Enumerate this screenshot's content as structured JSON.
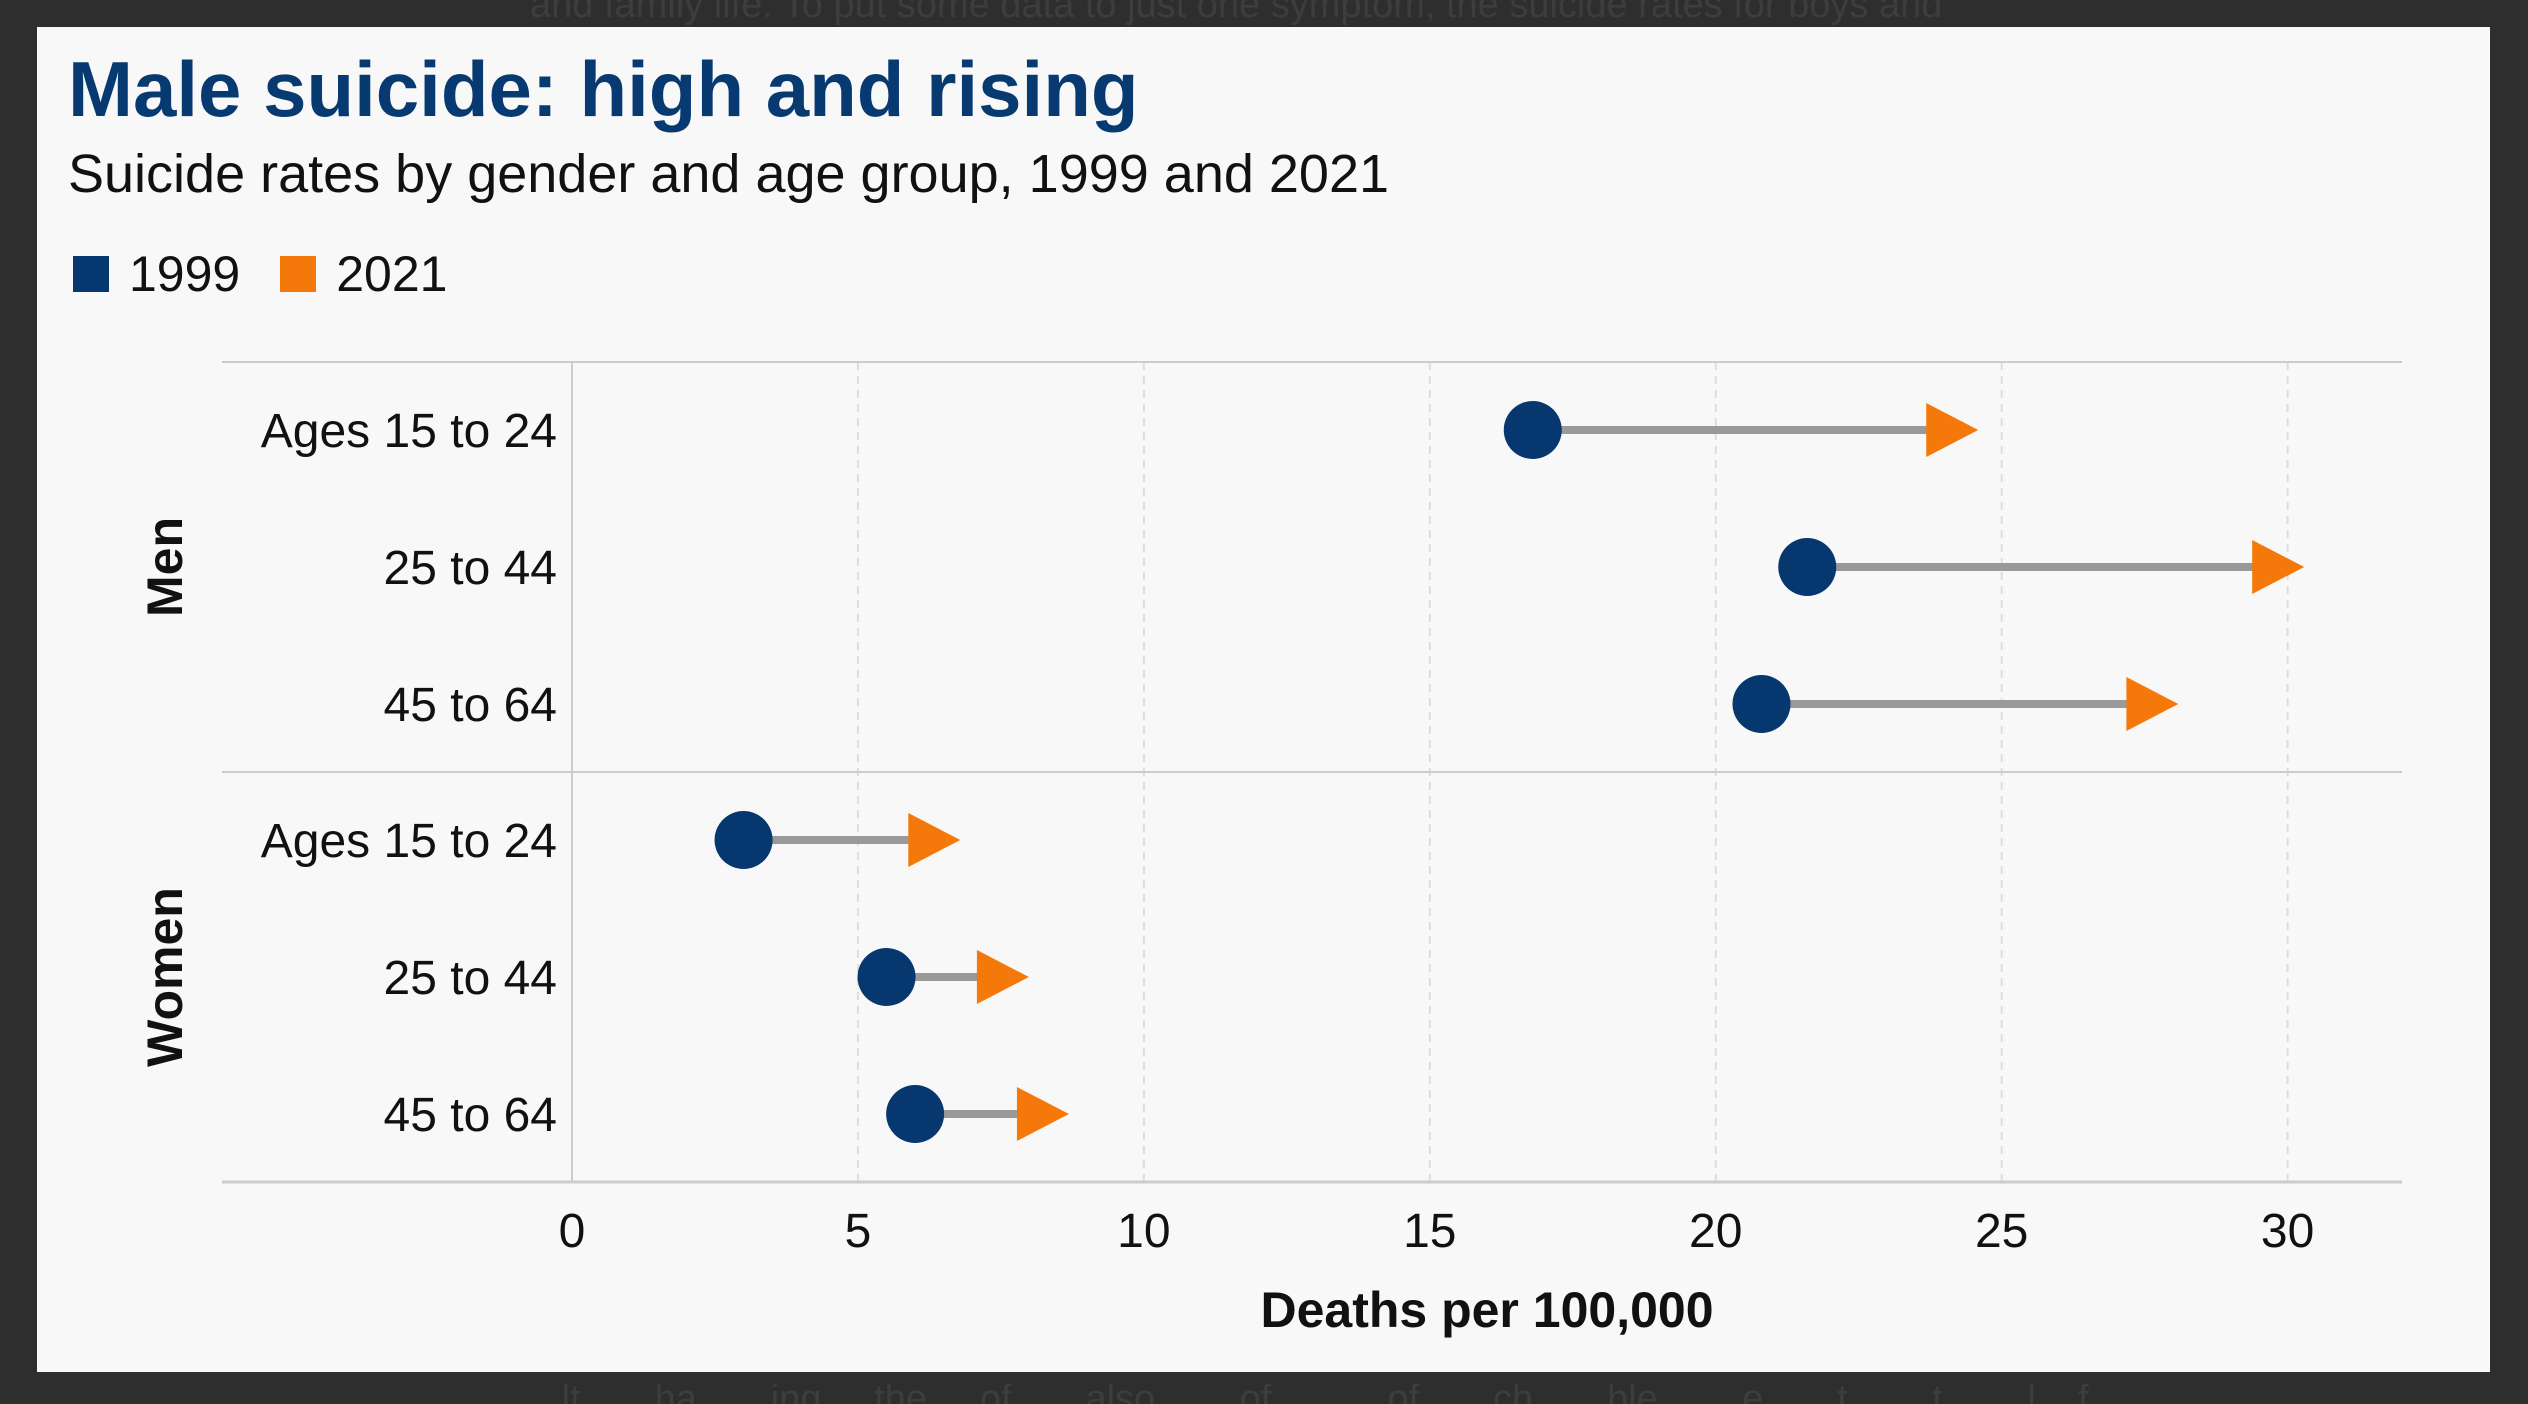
{
  "background_text": {
    "top_line": "and family life. To put some data to just one symptom, the suicide rates for boys and",
    "bottom_line": "...lt... ...ha... ...ing ... the ... of... ...also ... ...of... ... ...of... ...ch... ...ble ... ...e... ...t ... ...t ... ...l ...f"
  },
  "colors": {
    "page_background": "#2e2e2e",
    "card_background": "#f8f8f8",
    "title": "#083a72",
    "series_1999": "#06376e",
    "series_2021": "#f5780a",
    "connector": "#999999",
    "grid": "#dddddd",
    "axis": "#cccccc"
  },
  "chart_data": {
    "type": "dumbbell",
    "title": "Male suicide: high and rising",
    "subtitle": "Suicide rates by gender and age group, 1999 and 2021",
    "xlabel": "Deaths per 100,000",
    "ylabel": "",
    "xlim": [
      0,
      32
    ],
    "xticks": [
      0,
      5,
      10,
      15,
      20,
      25,
      30
    ],
    "grid": "vertical dashed",
    "legend_position": "top-left",
    "legend": [
      {
        "label": "1999",
        "marker": "square",
        "color": "#06376e"
      },
      {
        "label": "2021",
        "marker": "square",
        "color": "#f5780a"
      }
    ],
    "series_names": [
      "1999",
      "2021"
    ],
    "groups": [
      {
        "name": "Men",
        "rows": [
          {
            "label": "Ages 15 to 24",
            "value_1999": 16.8,
            "value_2021": 24.1
          },
          {
            "label": "25 to 44",
            "value_1999": 21.6,
            "value_2021": 29.8
          },
          {
            "label": "45 to 64",
            "value_1999": 20.8,
            "value_2021": 27.6
          }
        ]
      },
      {
        "name": "Women",
        "rows": [
          {
            "label": "Ages 15 to 24",
            "value_1999": 3.0,
            "value_2021": 6.3
          },
          {
            "label": "25 to 44",
            "value_1999": 5.5,
            "value_2021": 7.5
          },
          {
            "label": "45 to 64",
            "value_1999": 6.0,
            "value_2021": 8.2
          }
        ]
      }
    ]
  }
}
